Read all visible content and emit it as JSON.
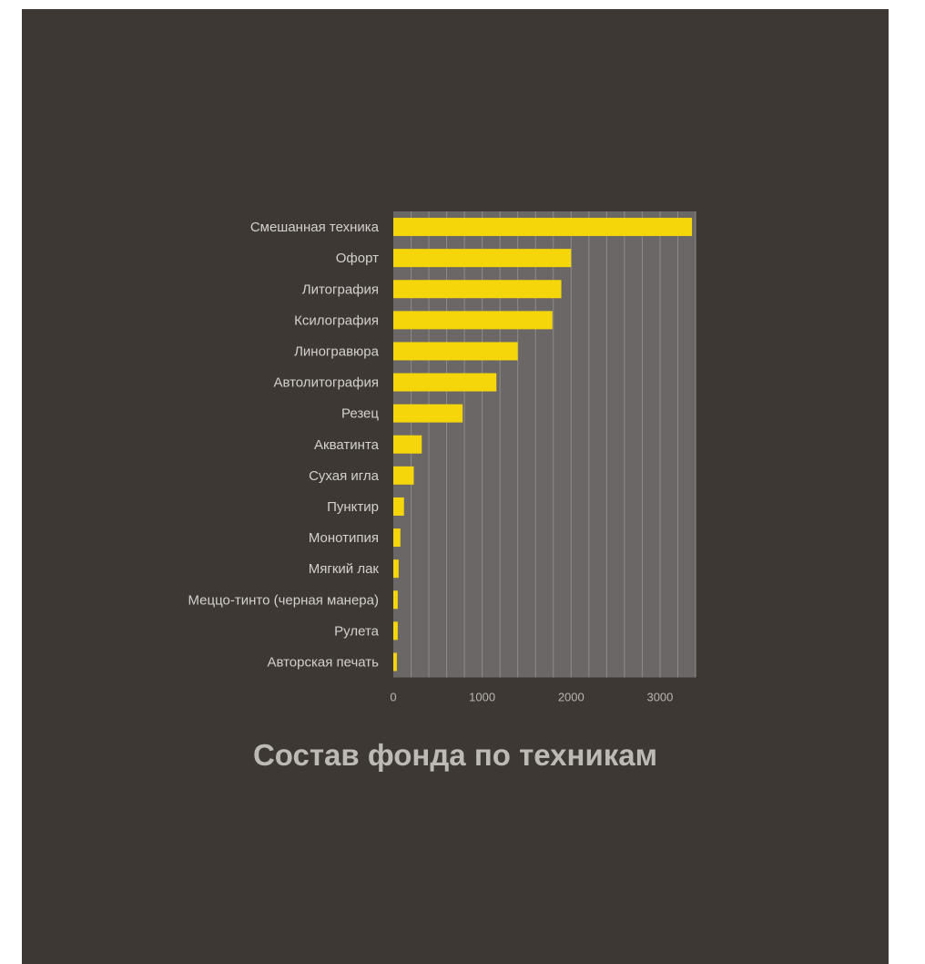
{
  "chart_data": {
    "type": "bar",
    "orientation": "horizontal",
    "title": "Состав фонда по техникам",
    "xlabel": "",
    "ylabel": "",
    "categories": [
      "Смешанная техника",
      "Офорт",
      "Литография",
      "Ксилография",
      "Линогравюра",
      "Автолитография",
      "Резец",
      "Акватинта",
      "Сухая игла",
      "Пунктир",
      "Монотипия",
      "Мягкий лак",
      "Меццо-тинто (черная манера)",
      "Рулета",
      "Авторская печать"
    ],
    "values": [
      3360,
      2000,
      1890,
      1790,
      1400,
      1160,
      780,
      320,
      230,
      120,
      80,
      60,
      50,
      50,
      40
    ],
    "xlim": [
      0,
      3400
    ],
    "xticks": [
      0,
      1000,
      2000,
      3000
    ],
    "grid": "vertical",
    "colors": {
      "background": "#3e3835",
      "plot_area": "#6a6766",
      "bar": "#f5d60a",
      "grid": "#908c89"
    }
  }
}
